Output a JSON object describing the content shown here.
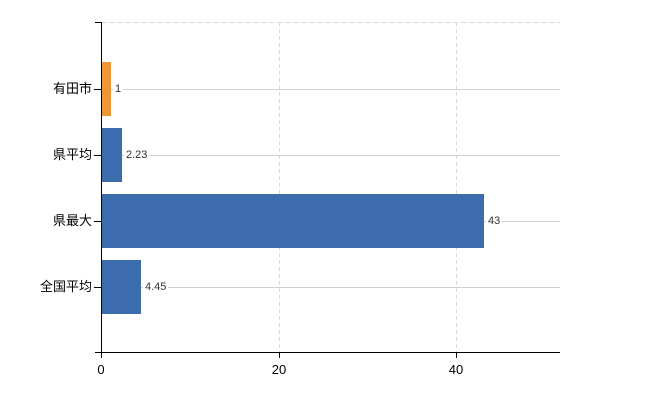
{
  "chart_data": {
    "type": "bar",
    "orientation": "horizontal",
    "title": "",
    "xlabel": "",
    "ylabel": "",
    "categories": [
      "有田市",
      "県平均",
      "県最大",
      "全国平均"
    ],
    "values": [
      1,
      2.23,
      43,
      4.45
    ],
    "value_labels": [
      "1",
      "2.23",
      "43",
      "4.45"
    ],
    "bar_colors": [
      "#ec9634",
      "#3c6cae",
      "#3c6cae",
      "#3c6cae"
    ],
    "x_ticks": [
      0,
      20,
      40
    ],
    "x_tick_labels": [
      "0",
      "20",
      "40"
    ],
    "xlim": [
      0,
      51.7
    ],
    "grid": "vertical dashed gridlines at x ticks, solid light horizontal line per category row, dashed top border",
    "legend_position": "none"
  },
  "colors": {
    "background": "#ffffff",
    "bar_blue": "#3c6cae",
    "bar_orange": "#ec9634",
    "axis": "#000000",
    "gridline_solid": "#d2d2d2",
    "gridline_dashed": "#d9d9d9",
    "value_text": "#333333",
    "label_text": "#000000"
  }
}
